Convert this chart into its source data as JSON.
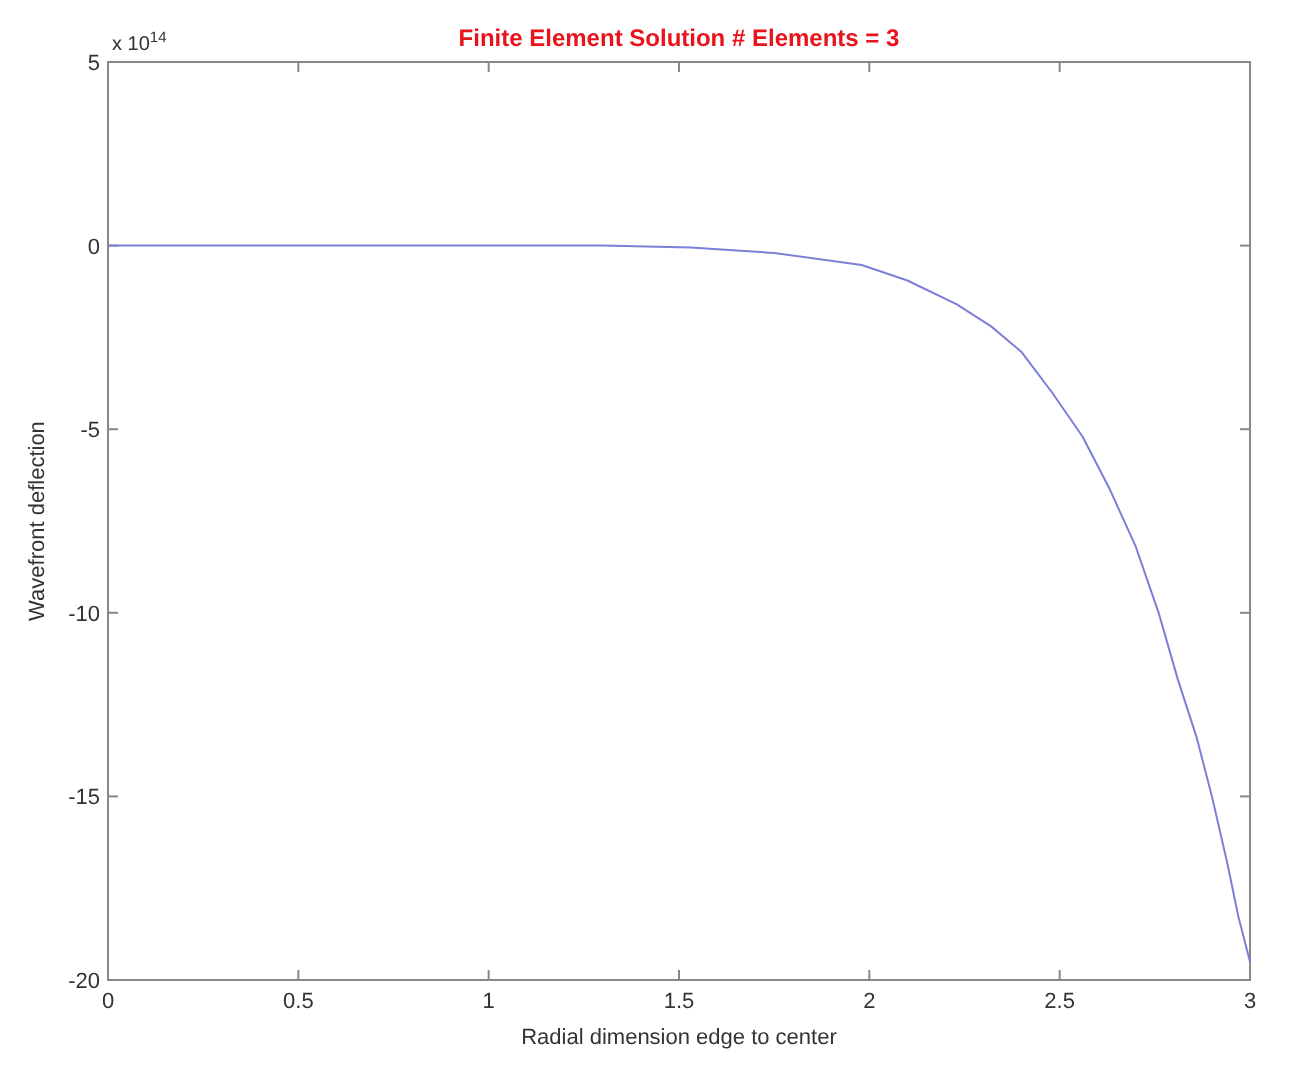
{
  "chart_data": {
    "type": "line",
    "title": "Finite Element Solution # Elements = 3",
    "xlabel": "Radial dimension edge to center",
    "ylabel": "Wavefront deflection",
    "annotations": [
      "x 10$^{14}$"
    ],
    "series": [
      {
        "color": "#7b7fd6",
        "x": [
          0,
          0.5,
          1,
          1.3,
          1.53,
          1.75,
          1.98,
          2.1,
          2.23,
          2.32,
          2.4,
          2.48,
          2.56,
          2.63,
          2.7,
          2.76,
          2.81,
          2.86,
          2.9,
          2.94,
          2.97,
          3
        ],
        "values": [
          0,
          0,
          0,
          0,
          -0.05,
          -0.2,
          -0.53,
          -0.95,
          -1.6,
          -2.2,
          -2.9,
          -4,
          -5.2,
          -6.6,
          -8.2,
          -10,
          -11.8,
          -13.4,
          -15,
          -16.8,
          -18.3,
          -19.5
        ]
      }
    ],
    "xlim": [
      0,
      3
    ],
    "ylim": [
      -20,
      5
    ],
    "xticks": [
      0,
      0.5,
      1,
      1.5,
      2,
      2.5,
      3
    ],
    "yticks": [
      -20,
      -15,
      -10,
      -5,
      0,
      5
    ],
    "grid": false,
    "marker": "none",
    "line_style": "solid"
  }
}
